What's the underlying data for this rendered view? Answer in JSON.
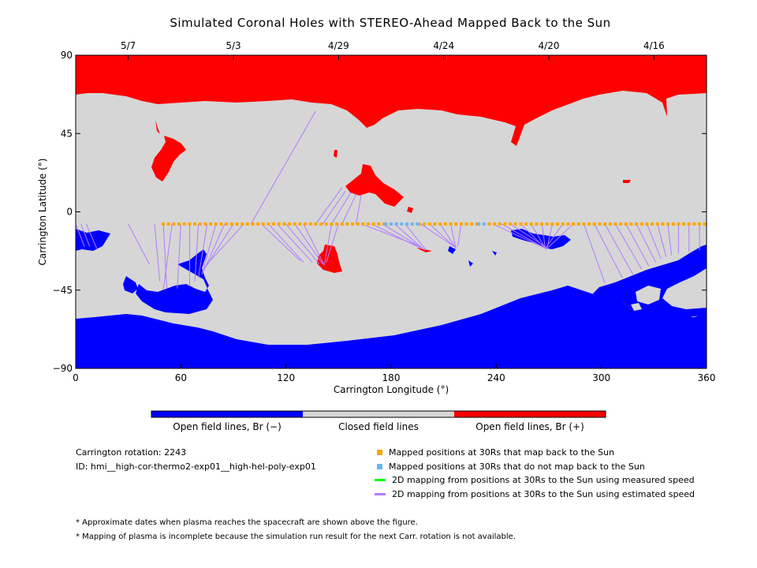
{
  "chart_data": {
    "type": "heatmap",
    "title": "Simulated Coronal Holes with STEREO-Ahead Mapped Back to the Sun",
    "xlabel": "Carrington Longitude (°)",
    "ylabel": "Carrington Latitude (°)",
    "xlim": [
      0,
      360
    ],
    "ylim": [
      -90,
      90
    ],
    "x_ticks": [
      0,
      60,
      120,
      180,
      240,
      300,
      360
    ],
    "y_ticks": [
      90,
      45,
      0,
      -45,
      -90
    ],
    "x_tick_labels": [
      "0",
      "60",
      "120",
      "180",
      "240",
      "300",
      "360"
    ],
    "y_tick_labels": [
      "90",
      "45",
      "0",
      "−45",
      "−90"
    ],
    "top_date_ticks": [
      {
        "label": "5/7",
        "lon": 30
      },
      {
        "label": "5/3",
        "lon": 90
      },
      {
        "label": "4/29",
        "lon": 150
      },
      {
        "label": "4/24",
        "lon": 210
      },
      {
        "label": "4/20",
        "lon": 270
      },
      {
        "label": "4/16",
        "lon": 330
      }
    ],
    "categories": [
      "Open field lines, Br (−)",
      "Closed field lines",
      "Open field lines, Br (+)"
    ],
    "category_colors": [
      "#0000ff",
      "#d6d6d6",
      "#ff0000"
    ],
    "colorbar": {
      "labels": [
        "Open field lines, Br (−)",
        "Closed field lines",
        "Open field lines, Br (+)"
      ]
    },
    "spacecraft_latitude": -7,
    "mapped_points": {
      "orange_lon_ranges": [
        [
          50,
          176
        ],
        [
          196,
          229
        ],
        [
          236,
          360
        ]
      ],
      "blue_lon_ranges": [
        [
          177,
          195
        ],
        [
          230,
          235
        ]
      ],
      "spacing": 3
    },
    "mapping_lines": [
      {
        "fp": [
          0,
          -7
        ],
        "to": [
          5,
          -20
        ]
      },
      {
        "fp": [
          3,
          -7
        ],
        "to": [
          8,
          -20
        ]
      },
      {
        "fp": [
          6,
          -7
        ],
        "to": [
          12,
          -21
        ]
      },
      {
        "fp": [
          30,
          -7
        ],
        "to": [
          42,
          -30
        ]
      },
      {
        "fp": [
          45,
          -7
        ],
        "to": [
          48,
          -40
        ]
      },
      {
        "fp": [
          50,
          -7
        ],
        "to": [
          52,
          -44
        ]
      },
      {
        "fp": [
          55,
          -7
        ],
        "to": [
          50,
          -45
        ]
      },
      {
        "fp": [
          60,
          -7
        ],
        "to": [
          58,
          -44
        ]
      },
      {
        "fp": [
          65,
          -7
        ],
        "to": [
          65,
          -42
        ]
      },
      {
        "fp": [
          70,
          -7
        ],
        "to": [
          68,
          -40
        ]
      },
      {
        "fp": [
          75,
          -7
        ],
        "to": [
          70,
          -38
        ]
      },
      {
        "fp": [
          80,
          -7
        ],
        "to": [
          72,
          -36
        ]
      },
      {
        "fp": [
          85,
          -7
        ],
        "to": [
          73,
          -34
        ]
      },
      {
        "fp": [
          90,
          -7
        ],
        "to": [
          74,
          -32
        ]
      },
      {
        "fp": [
          96,
          -7
        ],
        "to": [
          75,
          -30
        ]
      },
      {
        "fp": [
          100,
          -7
        ],
        "to": [
          137,
          58
        ]
      },
      {
        "fp": [
          106,
          -7
        ],
        "to": [
          128,
          -28
        ]
      },
      {
        "fp": [
          110,
          -7
        ],
        "to": [
          130,
          -29
        ]
      },
      {
        "fp": [
          115,
          -7
        ],
        "to": [
          135,
          -29
        ]
      },
      {
        "fp": [
          120,
          -7
        ],
        "to": [
          139,
          -30
        ]
      },
      {
        "fp": [
          125,
          -7
        ],
        "to": [
          141,
          -30
        ]
      },
      {
        "fp": [
          130,
          -7
        ],
        "to": [
          142,
          -31
        ]
      },
      {
        "fp": [
          137,
          -7
        ],
        "to": [
          152,
          14
        ]
      },
      {
        "fp": [
          141,
          -7
        ],
        "to": [
          154,
          12
        ]
      },
      {
        "fp": [
          146,
          -7
        ],
        "to": [
          157,
          11
        ]
      },
      {
        "fp": [
          152,
          -7
        ],
        "to": [
          160,
          10
        ]
      },
      {
        "fp": [
          160,
          -7
        ],
        "to": [
          163,
          10
        ]
      },
      {
        "fp": [
          146,
          -7
        ],
        "to": [
          142,
          -30
        ]
      },
      {
        "fp": [
          150,
          -7
        ],
        "to": [
          143,
          -29
        ]
      },
      {
        "fp": [
          163,
          -7
        ],
        "to": [
          197,
          -20
        ]
      },
      {
        "fp": [
          169,
          -7
        ],
        "to": [
          197,
          -21
        ]
      },
      {
        "fp": [
          175,
          -7
        ],
        "to": [
          198,
          -21
        ]
      },
      {
        "fp": [
          182,
          -7
        ],
        "to": [
          199,
          -22
        ]
      },
      {
        "fp": [
          188,
          -7
        ],
        "to": [
          200,
          -22
        ]
      },
      {
        "fp": [
          197,
          -7
        ],
        "to": [
          216,
          -20
        ]
      },
      {
        "fp": [
          202,
          -7
        ],
        "to": [
          216,
          -20
        ]
      },
      {
        "fp": [
          208,
          -7
        ],
        "to": [
          217,
          -21
        ]
      },
      {
        "fp": [
          214,
          -7
        ],
        "to": [
          217,
          -21
        ]
      },
      {
        "fp": [
          220,
          -7
        ],
        "to": [
          218,
          -20
        ]
      },
      {
        "fp": [
          238,
          -7
        ],
        "to": [
          268,
          -21
        ]
      },
      {
        "fp": [
          243,
          -7
        ],
        "to": [
          268,
          -21
        ]
      },
      {
        "fp": [
          248,
          -7
        ],
        "to": [
          268,
          -20
        ]
      },
      {
        "fp": [
          254,
          -7
        ],
        "to": [
          268,
          -21
        ]
      },
      {
        "fp": [
          260,
          -7
        ],
        "to": [
          268,
          -21
        ]
      },
      {
        "fp": [
          266,
          -7
        ],
        "to": [
          268,
          -21
        ]
      },
      {
        "fp": [
          272,
          -7
        ],
        "to": [
          269,
          -21
        ]
      },
      {
        "fp": [
          278,
          -7
        ],
        "to": [
          268,
          -21
        ]
      },
      {
        "fp": [
          284,
          -7
        ],
        "to": [
          268,
          -22
        ]
      },
      {
        "fp": [
          290,
          -7
        ],
        "to": [
          302,
          -41
        ]
      },
      {
        "fp": [
          296,
          -7
        ],
        "to": [
          312,
          -38
        ]
      },
      {
        "fp": [
          302,
          -7
        ],
        "to": [
          318,
          -36
        ]
      },
      {
        "fp": [
          308,
          -7
        ],
        "to": [
          323,
          -33
        ]
      },
      {
        "fp": [
          314,
          -7
        ],
        "to": [
          327,
          -31
        ]
      },
      {
        "fp": [
          320,
          -7
        ],
        "to": [
          331,
          -29
        ]
      },
      {
        "fp": [
          326,
          -7
        ],
        "to": [
          334,
          -27
        ]
      },
      {
        "fp": [
          332,
          -7
        ],
        "to": [
          337,
          -26
        ]
      },
      {
        "fp": [
          338,
          -7
        ],
        "to": [
          340,
          -25
        ]
      },
      {
        "fp": [
          344,
          -7
        ],
        "to": [
          344,
          -24
        ]
      },
      {
        "fp": [
          350,
          -7
        ],
        "to": [
          350,
          -23
        ]
      },
      {
        "fp": [
          356,
          -7
        ],
        "to": [
          356,
          -22
        ]
      }
    ],
    "grid": false
  },
  "info": {
    "rotation": "Carrington rotation: 2243",
    "id": "ID: hmi__high-cor-thermo2-exp01__high-hel-poly-exp01"
  },
  "legend": [
    {
      "label": "Mapped positions at 30Rs that map back to the Sun",
      "color": "#ffa500",
      "kind": "square"
    },
    {
      "label": "Mapped positions at 30Rs that do not map back to the Sun",
      "color": "#6ab4f0",
      "kind": "square"
    },
    {
      "label": "2D mapping from positions at 30Rs to the Sun using measured speed",
      "color": "#00ff00",
      "kind": "line"
    },
    {
      "label": "2D mapping from positions at 30Rs to the Sun using estimated speed",
      "color": "#b27cff",
      "kind": "line"
    }
  ],
  "notes": [
    "* Approximate dates when plasma reaches the spacecraft are shown above the figure.",
    "* Mapping of plasma is incomplete because the simulation run result for the next Carr. rotation is not available."
  ]
}
